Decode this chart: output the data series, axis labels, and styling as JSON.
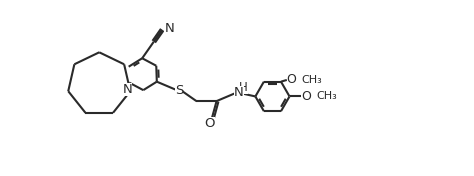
{
  "bg_color": "#ffffff",
  "line_color": "#2a2a2a",
  "line_width": 1.5,
  "fig_width": 4.74,
  "fig_height": 1.76,
  "dpi": 100,
  "xlim": [
    0,
    10
  ],
  "ylim": [
    -0.5,
    4.0
  ]
}
